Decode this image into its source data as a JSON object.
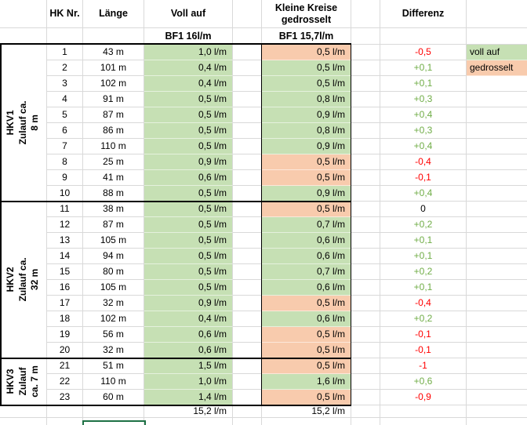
{
  "header": {
    "col_hk": "HK Nr.",
    "col_laenge": "Länge",
    "col_voll": "Voll auf",
    "col_kleine": "Kleine Kreise\ngedrosselt",
    "col_diff": "Differenz",
    "sub_voll": "BF1 16l/m",
    "sub_kleine": "BF1 15,7l/m"
  },
  "groups": [
    {
      "label": "HKV1\nZulauf ca. 8 m",
      "row_count": 10
    },
    {
      "label": "HKV2\nZulauf ca. 32 m",
      "row_count": 10
    },
    {
      "label": "HKV3\nZulauf\nca. 7 m",
      "row_count": 3
    }
  ],
  "legend": [
    {
      "label": "voll auf",
      "fill": "green"
    },
    {
      "label": "gedrosselt",
      "fill": "orange"
    }
  ],
  "rows": [
    {
      "nr": "1",
      "laenge": "43 m",
      "voll": "1,0 l/m",
      "kleine": "0,5 l/m",
      "kleine_fill": "orange",
      "diff": "-0,5",
      "diff_color": "neg"
    },
    {
      "nr": "2",
      "laenge": "101 m",
      "voll": "0,4 l/m",
      "kleine": "0,5 l/m",
      "kleine_fill": "green",
      "diff": "+0,1",
      "diff_color": "pos"
    },
    {
      "nr": "3",
      "laenge": "102 m",
      "voll": "0,4 l/m",
      "kleine": "0,5 l/m",
      "kleine_fill": "green",
      "diff": "+0,1",
      "diff_color": "pos"
    },
    {
      "nr": "4",
      "laenge": "91 m",
      "voll": "0,5 l/m",
      "kleine": "0,8 l/m",
      "kleine_fill": "green",
      "diff": "+0,3",
      "diff_color": "pos"
    },
    {
      "nr": "5",
      "laenge": "87 m",
      "voll": "0,5 l/m",
      "kleine": "0,9 l/m",
      "kleine_fill": "green",
      "diff": "+0,4",
      "diff_color": "pos"
    },
    {
      "nr": "6",
      "laenge": "86 m",
      "voll": "0,5 l/m",
      "kleine": "0,8 l/m",
      "kleine_fill": "green",
      "diff": "+0,3",
      "diff_color": "pos"
    },
    {
      "nr": "7",
      "laenge": "110 m",
      "voll": "0,5 l/m",
      "kleine": "0,9 l/m",
      "kleine_fill": "green",
      "diff": "+0,4",
      "diff_color": "pos"
    },
    {
      "nr": "8",
      "laenge": "25 m",
      "voll": "0,9 l/m",
      "kleine": "0,5 l/m",
      "kleine_fill": "orange",
      "diff": "-0,4",
      "diff_color": "neg"
    },
    {
      "nr": "9",
      "laenge": "41 m",
      "voll": "0,6 l/m",
      "kleine": "0,5 l/m",
      "kleine_fill": "orange",
      "diff": "-0,1",
      "diff_color": "neg"
    },
    {
      "nr": "10",
      "laenge": "88 m",
      "voll": "0,5 l/m",
      "kleine": "0,9 l/m",
      "kleine_fill": "green",
      "diff": "+0,4",
      "diff_color": "pos"
    },
    {
      "nr": "11",
      "laenge": "38 m",
      "voll": "0,5 l/m",
      "kleine": "0,5 l/m",
      "kleine_fill": "orange",
      "diff": "0",
      "diff_color": "zero"
    },
    {
      "nr": "12",
      "laenge": "87 m",
      "voll": "0,5 l/m",
      "kleine": "0,7 l/m",
      "kleine_fill": "green",
      "diff": "+0,2",
      "diff_color": "pos"
    },
    {
      "nr": "13",
      "laenge": "105 m",
      "voll": "0,5 l/m",
      "kleine": "0,6 l/m",
      "kleine_fill": "green",
      "diff": "+0,1",
      "diff_color": "pos"
    },
    {
      "nr": "14",
      "laenge": "94 m",
      "voll": "0,5 l/m",
      "kleine": "0,6 l/m",
      "kleine_fill": "green",
      "diff": "+0,1",
      "diff_color": "pos"
    },
    {
      "nr": "15",
      "laenge": "80 m",
      "voll": "0,5 l/m",
      "kleine": "0,7 l/m",
      "kleine_fill": "green",
      "diff": "+0,2",
      "diff_color": "pos"
    },
    {
      "nr": "16",
      "laenge": "105 m",
      "voll": "0,5 l/m",
      "kleine": "0,6 l/m",
      "kleine_fill": "green",
      "diff": "+0,1",
      "diff_color": "pos"
    },
    {
      "nr": "17",
      "laenge": "32 m",
      "voll": "0,9 l/m",
      "kleine": "0,5 l/m",
      "kleine_fill": "orange",
      "diff": "-0,4",
      "diff_color": "neg"
    },
    {
      "nr": "18",
      "laenge": "102 m",
      "voll": "0,4 l/m",
      "kleine": "0,6 l/m",
      "kleine_fill": "green",
      "diff": "+0,2",
      "diff_color": "pos"
    },
    {
      "nr": "19",
      "laenge": "56 m",
      "voll": "0,6 l/m",
      "kleine": "0,5 l/m",
      "kleine_fill": "orange",
      "diff": "-0,1",
      "diff_color": "neg"
    },
    {
      "nr": "20",
      "laenge": "32 m",
      "voll": "0,6 l/m",
      "kleine": "0,5 l/m",
      "kleine_fill": "orange",
      "diff": "-0,1",
      "diff_color": "neg"
    },
    {
      "nr": "21",
      "laenge": "51 m",
      "voll": "1,5 l/m",
      "kleine": "0,5 l/m",
      "kleine_fill": "orange",
      "diff": "-1",
      "diff_color": "neg"
    },
    {
      "nr": "22",
      "laenge": "110 m",
      "voll": "1,0 l/m",
      "kleine": "1,6 l/m",
      "kleine_fill": "green",
      "diff": "+0,6",
      "diff_color": "pos"
    },
    {
      "nr": "23",
      "laenge": "60 m",
      "voll": "1,4 l/m",
      "kleine": "0,5 l/m",
      "kleine_fill": "orange",
      "diff": "-0,9",
      "diff_color": "neg"
    }
  ],
  "totals": {
    "voll": "15,2 l/m",
    "kleine": "15,2 l/m"
  },
  "colors": {
    "green_fill": "#C6E0B4",
    "orange_fill": "#F8CBAD",
    "diff_pos": "#70AD47",
    "diff_neg": "#FF0000",
    "diff_zero": "#000000",
    "gridline": "#D9D9D9",
    "selection": "#1E7145",
    "black_border": "#000000"
  }
}
